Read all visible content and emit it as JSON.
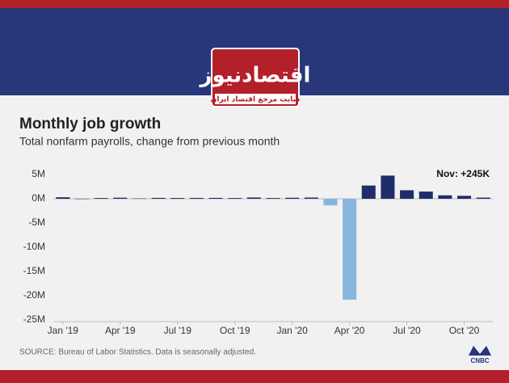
{
  "header": {
    "logo_title": "اقتصادنیوز",
    "logo_subtitle": "سایت مرجع اقتصاد ایران"
  },
  "chart_data": {
    "type": "bar",
    "title": "Monthly job growth",
    "subtitle": "Total nonfarm payrolls, change from previous month",
    "annotation": "Nov: +245K",
    "categories": [
      "Jan '19",
      null,
      null,
      "Apr '19",
      null,
      null,
      "Jul '19",
      null,
      null,
      "Oct '19",
      null,
      null,
      "Jan '20",
      null,
      null,
      "Apr '20",
      null,
      null,
      "Jul '20",
      null,
      null,
      "Oct '20",
      null
    ],
    "values": [
      0.31,
      0.02,
      0.15,
      0.22,
      0.07,
      0.18,
      0.16,
      0.17,
      0.18,
      0.15,
      0.26,
      0.15,
      0.21,
      0.25,
      -1.37,
      -20.8,
      2.73,
      4.78,
      1.76,
      1.49,
      0.71,
      0.61,
      0.245
    ],
    "color": "#1f2d6b",
    "negative_color": "#86b6dd",
    "ylim": [
      -25,
      5
    ],
    "yticks": [
      {
        "value": 5,
        "label": "5M"
      },
      {
        "value": 0,
        "label": "0M"
      },
      {
        "value": -5,
        "label": "-5M"
      },
      {
        "value": -10,
        "label": "-10M"
      },
      {
        "value": -15,
        "label": "-15M"
      },
      {
        "value": -20,
        "label": "-20M"
      },
      {
        "value": -25,
        "label": "-25M"
      }
    ],
    "grid": false
  },
  "footer": {
    "source": "SOURCE: Bureau of Labor Statistics. Data is seasonally adjusted.",
    "brand": "CNBC"
  }
}
